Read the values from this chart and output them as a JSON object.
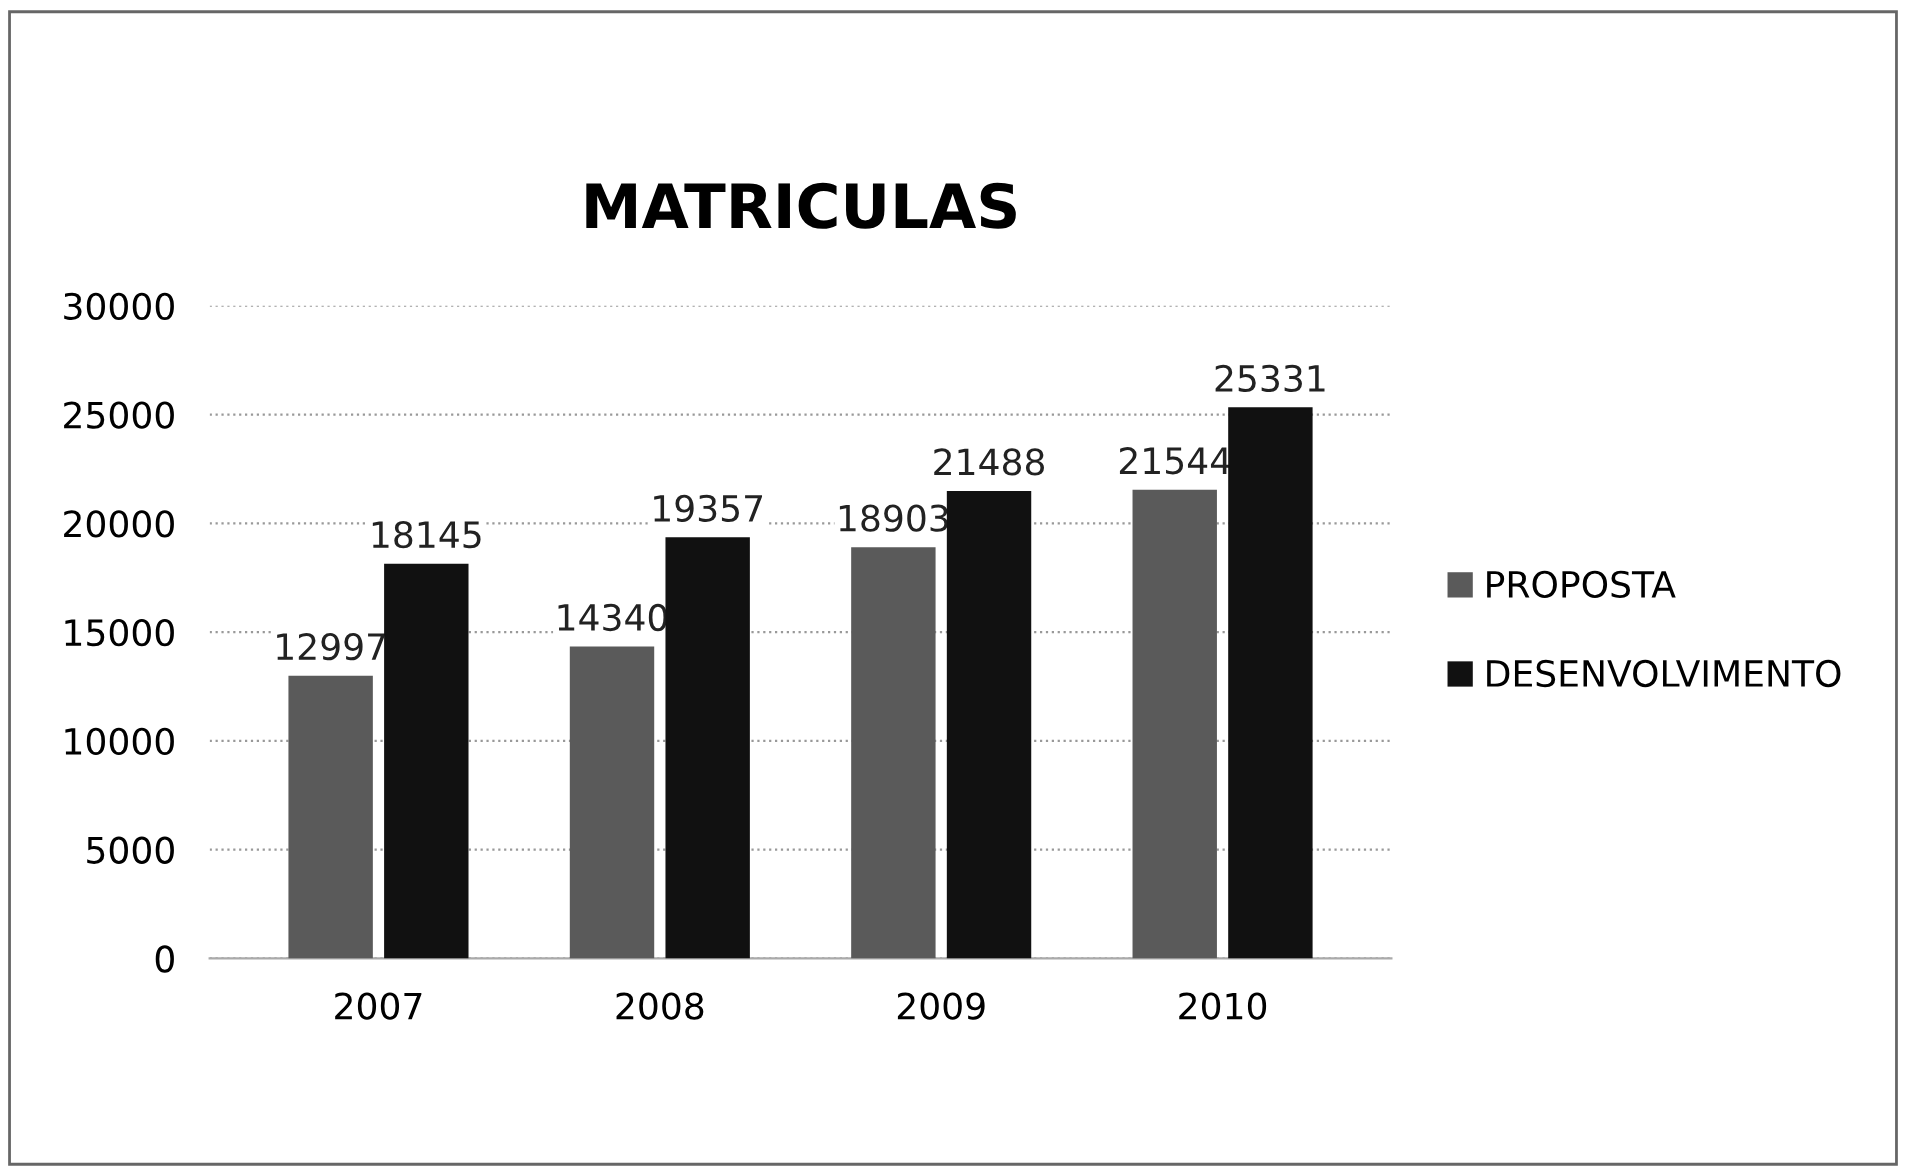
{
  "chart_data": {
    "type": "bar",
    "title": "MATRICULAS",
    "categories": [
      "2007",
      "2008",
      "2009",
      "2010"
    ],
    "series": [
      {
        "name": "PROPOSTA",
        "color": "#5a5a5a",
        "values": [
          12997,
          14340,
          18903,
          21544
        ]
      },
      {
        "name": "DESENVOLVIMENTO",
        "color": "#111111",
        "values": [
          18145,
          19357,
          21488,
          25331
        ]
      }
    ],
    "ylim": [
      0,
      30000
    ],
    "yticks": [
      0,
      5000,
      10000,
      15000,
      20000,
      25000,
      30000
    ],
    "grid": "y",
    "legend": "right",
    "data_labels": true
  }
}
